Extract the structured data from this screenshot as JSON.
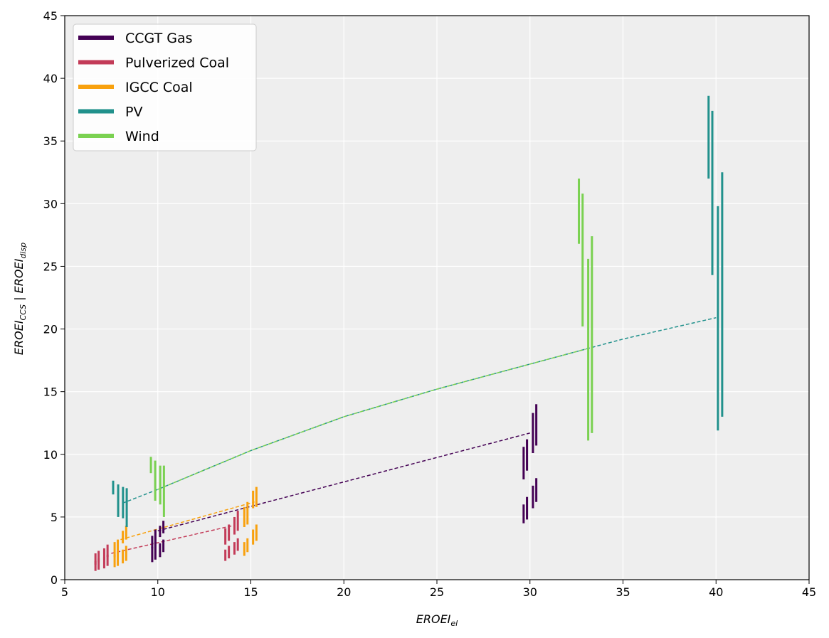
{
  "chart_data": {
    "type": "errorbar",
    "xlabel_main": "EROEI",
    "xlabel_sub": "el",
    "ylabel_main1": "EROEI",
    "ylabel_sub1": "CCS",
    "ylabel_sep": " | ",
    "ylabel_main2": "EROEI",
    "ylabel_sub2": "disp",
    "xlim": [
      5,
      45
    ],
    "ylim": [
      0,
      45
    ],
    "xticks": [
      5,
      10,
      15,
      20,
      25,
      30,
      35,
      40,
      45
    ],
    "yticks": [
      0,
      5,
      10,
      15,
      20,
      25,
      30,
      35,
      40,
      45
    ],
    "grid": true,
    "legend_position": "upper-left",
    "series": [
      {
        "name": "CCGT Gas",
        "color": "#440154",
        "trend": [
          [
            10,
            3.9
          ],
          [
            30,
            11.7
          ]
        ],
        "bars": [
          [
            9.7,
            1.4,
            2.6
          ],
          [
            9.87,
            1.6,
            3.0
          ],
          [
            10.12,
            1.8,
            2.9
          ],
          [
            10.3,
            2.2,
            3.2
          ],
          [
            9.7,
            2.5,
            3.5
          ],
          [
            9.87,
            2.9,
            4.0
          ],
          [
            10.12,
            3.4,
            4.3
          ],
          [
            10.3,
            3.7,
            4.7
          ],
          [
            29.66,
            4.5,
            6.0
          ],
          [
            29.84,
            4.8,
            6.6
          ],
          [
            30.16,
            5.7,
            7.5
          ],
          [
            30.34,
            6.2,
            8.1
          ],
          [
            29.66,
            8.0,
            10.6
          ],
          [
            29.84,
            8.7,
            11.2
          ],
          [
            30.16,
            10.1,
            13.3
          ],
          [
            30.34,
            10.7,
            14.0
          ]
        ]
      },
      {
        "name": "Pulverized Coal",
        "color": "#c33b58",
        "trend": [
          [
            7.5,
            2.1
          ],
          [
            14,
            4.3
          ]
        ],
        "bars": [
          [
            6.65,
            0.7,
            1.5
          ],
          [
            6.82,
            0.8,
            1.7
          ],
          [
            7.12,
            0.9,
            1.8
          ],
          [
            7.3,
            1.1,
            2.0
          ],
          [
            6.65,
            1.2,
            2.1
          ],
          [
            6.82,
            1.4,
            2.3
          ],
          [
            7.12,
            1.6,
            2.5
          ],
          [
            7.3,
            1.8,
            2.8
          ],
          [
            13.63,
            1.5,
            2.4
          ],
          [
            13.82,
            1.7,
            2.7
          ],
          [
            14.12,
            2.0,
            3.0
          ],
          [
            14.3,
            2.3,
            3.3
          ],
          [
            13.63,
            2.8,
            4.1
          ],
          [
            13.82,
            3.1,
            4.4
          ],
          [
            14.12,
            3.6,
            5.0
          ],
          [
            14.3,
            3.9,
            5.5
          ]
        ]
      },
      {
        "name": "IGCC Coal",
        "color": "#f8a10e",
        "trend": [
          [
            8,
            3.2
          ],
          [
            15.2,
            6.2
          ]
        ],
        "bars": [
          [
            7.68,
            1.0,
            2.0
          ],
          [
            7.85,
            1.1,
            2.2
          ],
          [
            8.12,
            1.3,
            2.4
          ],
          [
            8.3,
            1.5,
            2.7
          ],
          [
            7.68,
            1.8,
            3.0
          ],
          [
            7.85,
            2.1,
            3.2
          ],
          [
            8.12,
            2.9,
            3.9
          ],
          [
            8.3,
            3.2,
            4.3
          ],
          [
            14.65,
            1.9,
            3.0
          ],
          [
            14.82,
            2.2,
            3.3
          ],
          [
            15.12,
            2.8,
            4.0
          ],
          [
            15.3,
            3.1,
            4.4
          ],
          [
            14.65,
            4.2,
            5.8
          ],
          [
            14.82,
            4.4,
            6.2
          ],
          [
            15.12,
            5.7,
            7.1
          ],
          [
            15.3,
            5.8,
            7.4
          ]
        ]
      },
      {
        "name": "PV",
        "color": "#21918c",
        "trend": [
          [
            8.1,
            6.1
          ],
          [
            10,
            7.2
          ],
          [
            15,
            10.3
          ],
          [
            20,
            13.0
          ],
          [
            25,
            15.2
          ],
          [
            30,
            17.2
          ],
          [
            35,
            19.2
          ],
          [
            40,
            20.9
          ]
        ],
        "bars": [
          [
            7.6,
            6.8,
            7.9
          ],
          [
            7.87,
            5.0,
            7.6
          ],
          [
            8.13,
            4.9,
            7.4
          ],
          [
            8.33,
            4.2,
            7.3
          ],
          [
            39.6,
            32.0,
            38.6
          ],
          [
            39.8,
            24.3,
            37.4
          ],
          [
            40.1,
            11.9,
            29.8
          ],
          [
            40.33,
            13.0,
            32.5
          ]
        ]
      },
      {
        "name": "Wind",
        "color": "#7ad151",
        "trend": [
          [
            10,
            7.2
          ],
          [
            15,
            10.3
          ],
          [
            20,
            13.0
          ],
          [
            25,
            15.2
          ],
          [
            30,
            17.2
          ],
          [
            33,
            18.4
          ]
        ],
        "bars": [
          [
            9.63,
            8.5,
            9.8
          ],
          [
            9.86,
            6.3,
            9.5
          ],
          [
            10.13,
            6.0,
            9.1
          ],
          [
            10.33,
            5.0,
            9.1
          ],
          [
            32.63,
            26.8,
            32.0
          ],
          [
            32.83,
            20.2,
            30.8
          ],
          [
            33.13,
            11.1,
            25.6
          ],
          [
            33.33,
            11.7,
            27.4
          ]
        ]
      }
    ]
  }
}
